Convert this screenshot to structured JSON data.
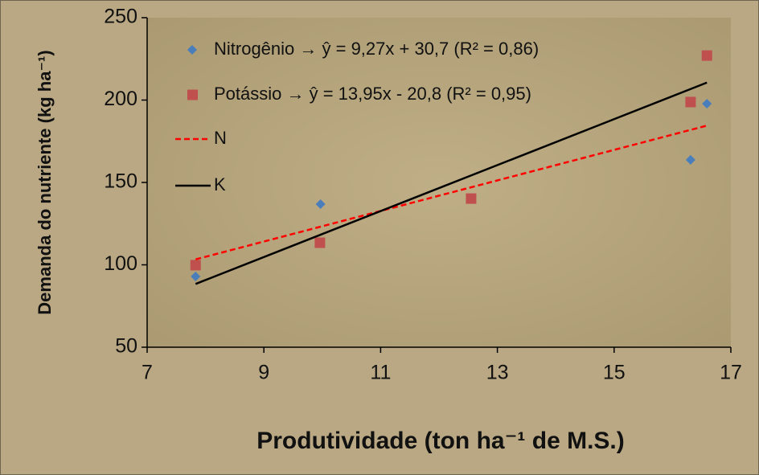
{
  "chart_data": {
    "type": "scatter",
    "xlabel": "Produtividade (ton ha⁻¹ de M.S.)",
    "ylabel": "Demanda do nutriente (kg ha⁻¹)",
    "xlim": [
      7,
      17
    ],
    "xticks": [
      7,
      9,
      11,
      13,
      15,
      17
    ],
    "ylim": [
      50,
      250
    ],
    "yticks": [
      50,
      100,
      150,
      200,
      250
    ],
    "series": [
      {
        "name": "Nitrogênio → ŷ = 9,27x + 30,7 (R² = 0,86)",
        "color": "#4a7ebb",
        "marker": "diamond",
        "x": [
          7.83,
          9.97,
          16.31,
          16.59
        ],
        "values": [
          92.9,
          136.8,
          163.7,
          197.8
        ]
      },
      {
        "name": "Potássio → ŷ = 13,95x - 20,8 (R² = 0,95)",
        "color": "#c0504d",
        "marker": "square",
        "x": [
          7.83,
          9.96,
          12.55,
          16.31,
          16.59
        ],
        "values": [
          99.8,
          113.4,
          140.2,
          198.8,
          227
        ]
      },
      {
        "name": "N",
        "color": "#ff0000",
        "marker": "dashed-line",
        "x": [
          7.83,
          16.59
        ],
        "values": [
          103.3,
          184.5
        ]
      },
      {
        "name": "K",
        "color": "#000000",
        "marker": "solid-line",
        "x": [
          7.83,
          16.59
        ],
        "values": [
          88.4,
          210.6
        ]
      }
    ]
  }
}
